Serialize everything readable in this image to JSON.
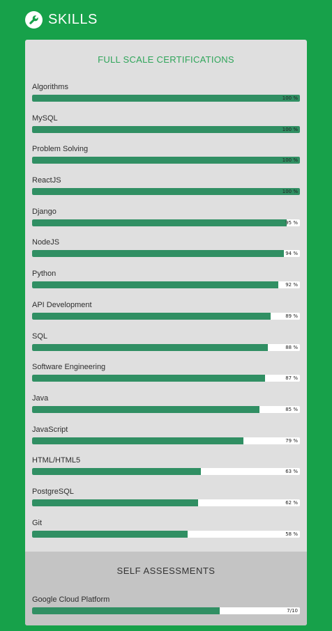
{
  "header": {
    "title": "SKILLS",
    "icon": "wrench-icon"
  },
  "certifications": {
    "title": "FULL SCALE CERTIFICATIONS",
    "skills": [
      {
        "name": "Algorithms",
        "percent": 100,
        "label": "100 %"
      },
      {
        "name": "MySQL",
        "percent": 100,
        "label": "100 %"
      },
      {
        "name": "Problem Solving",
        "percent": 100,
        "label": "100 %"
      },
      {
        "name": "ReactJS",
        "percent": 100,
        "label": "100 %"
      },
      {
        "name": "Django",
        "percent": 95,
        "label": "95 %"
      },
      {
        "name": "NodeJS",
        "percent": 94,
        "label": "94 %"
      },
      {
        "name": "Python",
        "percent": 92,
        "label": "92 %"
      },
      {
        "name": "API Development",
        "percent": 89,
        "label": "89 %"
      },
      {
        "name": "SQL",
        "percent": 88,
        "label": "88 %"
      },
      {
        "name": "Software Engineering",
        "percent": 87,
        "label": "87 %"
      },
      {
        "name": "Java",
        "percent": 85,
        "label": "85 %"
      },
      {
        "name": "JavaScript",
        "percent": 79,
        "label": "79 %"
      },
      {
        "name": "HTML/HTML5",
        "percent": 63,
        "label": "63 %"
      },
      {
        "name": "PostgreSQL",
        "percent": 62,
        "label": "62 %"
      },
      {
        "name": "Git",
        "percent": 58,
        "label": "58 %"
      }
    ]
  },
  "self_assessments": {
    "title": "SELF ASSESSMENTS",
    "skills": [
      {
        "name": "Google Cloud Platform",
        "percent": 70,
        "label": "7/10"
      }
    ]
  },
  "colors": {
    "background": "#17a14a",
    "card": "#dfdfdf",
    "bar_fill": "#308f63",
    "section_title": "#2fa55a",
    "self_section": "#c4c4c4"
  }
}
